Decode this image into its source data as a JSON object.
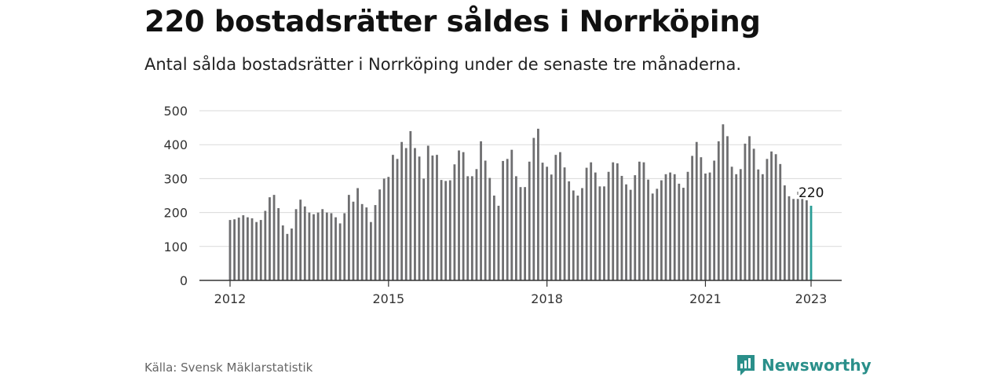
{
  "header": {
    "title": "220 bostadsrätter såldes i Norrköping",
    "subtitle": "Antal sålda bostadsrätter i Norrköping under de senaste tre månaderna."
  },
  "footer": {
    "source": "Källa: Svensk Mäklarstatistik",
    "brand": "Newsworthy",
    "brand_icon": "newsworthy-logo-icon"
  },
  "colors": {
    "bar": "#6e6e70",
    "highlight": "#2a9d96",
    "grid": "#d9d9d9",
    "axis": "#333333",
    "brand": "#2a8f8a"
  },
  "chart_data": {
    "type": "bar",
    "x_start": "2012-01",
    "x_end": "2023-01",
    "ylim": [
      0,
      500
    ],
    "y_ticks": [
      0,
      100,
      200,
      300,
      400,
      500
    ],
    "x_ticks": [
      "2012",
      "2015",
      "2018",
      "2021",
      "2023"
    ],
    "grid": true,
    "highlight_label": "220",
    "values": [
      178,
      180,
      185,
      192,
      186,
      183,
      172,
      178,
      205,
      245,
      252,
      213,
      162,
      137,
      153,
      210,
      238,
      218,
      200,
      195,
      200,
      210,
      200,
      198,
      186,
      168,
      198,
      252,
      232,
      272,
      225,
      215,
      172,
      222,
      268,
      300,
      305,
      370,
      358,
      408,
      390,
      440,
      390,
      365,
      300,
      397,
      368,
      370,
      296,
      293,
      295,
      342,
      383,
      378,
      307,
      307,
      328,
      410,
      353,
      302,
      250,
      220,
      352,
      358,
      385,
      307,
      275,
      275,
      350,
      420,
      447,
      347,
      335,
      312,
      370,
      378,
      333,
      292,
      265,
      250,
      272,
      332,
      348,
      318,
      277,
      277,
      320,
      348,
      345,
      308,
      283,
      267,
      310,
      350,
      348,
      297,
      256,
      270,
      295,
      313,
      318,
      313,
      285,
      273,
      320,
      367,
      408,
      363,
      315,
      318,
      353,
      410,
      460,
      425,
      335,
      313,
      328,
      403,
      425,
      388,
      327,
      313,
      358,
      380,
      372,
      343,
      280,
      248,
      240,
      240,
      240,
      236,
      220
    ]
  }
}
